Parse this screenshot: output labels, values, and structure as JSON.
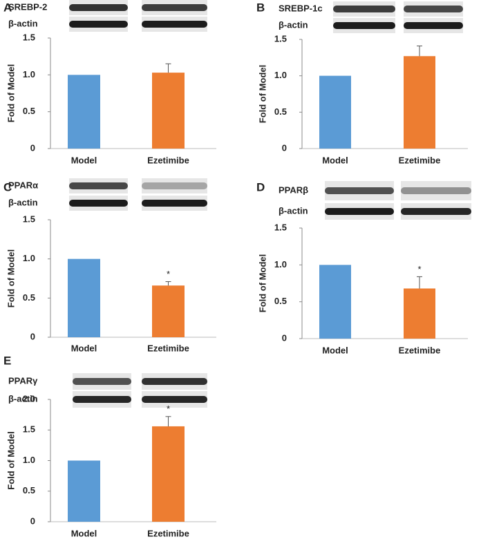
{
  "chart_data": [
    {
      "type": "bar",
      "panel": "A",
      "blot_labels": [
        "SREBP-2",
        "β-actin"
      ],
      "y_label": "Fold of Model",
      "categories": [
        "Model",
        "Ezetimibe"
      ],
      "values": [
        1,
        1.03
      ],
      "errors": [
        null,
        0.12
      ],
      "colors": [
        "#5b9bd5",
        "#ed7d31"
      ],
      "ylim": [
        0,
        1.5
      ],
      "yticks": [
        0,
        0.5,
        {
          "value": 1,
          "label": "1.0"
        },
        1.5
      ]
    },
    {
      "type": "bar",
      "panel": "B",
      "blot_labels": [
        "SREBP-1c",
        "β-actin"
      ],
      "y_label": "Fold of Model",
      "categories": [
        "Model",
        "Ezetimibe"
      ],
      "values": [
        1,
        1.27
      ],
      "errors": [
        null,
        0.14
      ],
      "colors": [
        "#5b9bd5",
        "#ed7d31"
      ],
      "ylim": [
        0,
        1.5
      ],
      "yticks": [
        0,
        0.5,
        {
          "value": 1,
          "label": "1.0"
        },
        1.5
      ]
    },
    {
      "type": "bar",
      "panel": "C",
      "blot_labels": [
        "PPARα",
        "β-actin"
      ],
      "y_label": "Fold of Model",
      "categories": [
        "Model",
        "Ezetimibe"
      ],
      "values": [
        1,
        0.66
      ],
      "errors": [
        null,
        0.05
      ],
      "significance": [
        null,
        "*"
      ],
      "colors": [
        "#5b9bd5",
        "#ed7d31"
      ],
      "ylim": [
        0,
        1.5
      ],
      "yticks": [
        0,
        0.5,
        {
          "value": 1,
          "label": "1.0"
        },
        1.5
      ]
    },
    {
      "type": "bar",
      "panel": "D",
      "blot_labels": [
        "PPARβ",
        "β-actin"
      ],
      "y_label": "Fold of Model",
      "categories": [
        "Model",
        "Ezetimibe"
      ],
      "values": [
        1,
        0.68
      ],
      "errors": [
        null,
        0.16
      ],
      "significance": [
        null,
        "*"
      ],
      "colors": [
        "#5b9bd5",
        "#ed7d31"
      ],
      "ylim": [
        0,
        1.5
      ],
      "yticks": [
        0,
        0.5,
        {
          "value": 1,
          "label": "1.0"
        },
        1.5
      ]
    },
    {
      "type": "bar",
      "panel": "E",
      "blot_labels": [
        "PPARγ",
        "β-actin"
      ],
      "y_label": "Fold of Model",
      "categories": [
        "Model",
        "Ezetimibe"
      ],
      "values": [
        1,
        1.56
      ],
      "errors": [
        null,
        0.16
      ],
      "significance": [
        null,
        "*"
      ],
      "colors": [
        "#5b9bd5",
        "#ed7d31"
      ],
      "ylim": [
        0,
        2
      ],
      "yticks": [
        0,
        0.5,
        {
          "value": 1,
          "label": "1.0"
        },
        1.5,
        {
          "value": 2,
          "label": "2.0"
        }
      ]
    }
  ]
}
